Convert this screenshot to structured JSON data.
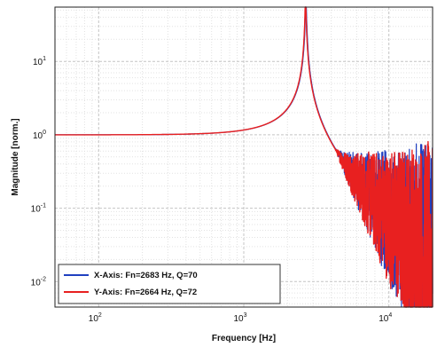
{
  "chart_data": {
    "type": "line",
    "title": "",
    "xlabel": "Frequency [Hz]",
    "ylabel": "Magnitude [norm.]",
    "xscale": "log",
    "yscale": "log",
    "xlim": [
      50,
      20000
    ],
    "ylim": [
      0.0045,
      55
    ],
    "grid": true,
    "legend_position": "bottom-left",
    "x_ticks": [
      {
        "value": 100,
        "base": "10",
        "exp": "2"
      },
      {
        "value": 1000,
        "base": "10",
        "exp": "3"
      },
      {
        "value": 10000,
        "base": "10",
        "exp": "4"
      }
    ],
    "y_ticks": [
      {
        "value": 0.01,
        "base": "10",
        "exp": "-2"
      },
      {
        "value": 0.1,
        "base": "10",
        "exp": "-1"
      },
      {
        "value": 1,
        "base": "10",
        "exp": "0"
      },
      {
        "value": 10,
        "base": "10",
        "exp": "1"
      }
    ],
    "series": [
      {
        "name": "X-Axis: Fn=2683 Hz, Q=70",
        "color": "#2040c0",
        "fn": 2683,
        "q": 70,
        "x": [
          50,
          200,
          1000,
          2000,
          2683,
          4000,
          8000,
          20000
        ],
        "y": [
          1.0,
          1.0,
          1.16,
          2.3,
          70,
          0.8,
          0.05,
          0.008
        ]
      },
      {
        "name": "Y-Axis: Fn=2664 Hz, Q=72",
        "color": "#e82020",
        "fn": 2664,
        "q": 72,
        "x": [
          50,
          200,
          1000,
          2000,
          2664,
          4000,
          8000,
          20000
        ],
        "y": [
          1.0,
          1.0,
          1.16,
          2.3,
          72,
          0.8,
          0.05,
          0.01
        ]
      }
    ]
  }
}
